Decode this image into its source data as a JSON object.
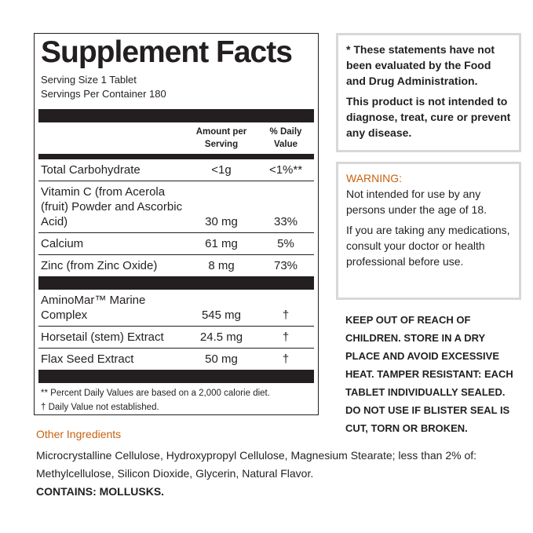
{
  "facts": {
    "title": "Supplement Facts",
    "serving_size": "Serving Size 1 Tablet",
    "servings_per_container": "Servings Per Container 180",
    "columns": [
      "Amount per Serving",
      "% Daily Value"
    ],
    "rows": [
      [
        "Total Carbohydrate",
        "<1g",
        "<1%**"
      ],
      [
        "Vitamin C (from Acerola (fruit) Powder and Ascorbic Acid)",
        "30 mg",
        "33%"
      ],
      [
        "Calcium",
        "61 mg",
        "5%"
      ],
      [
        "Zinc (from Zinc Oxide)",
        "8 mg",
        "73%"
      ]
    ],
    "other_rows": [
      [
        "AminoMar™ Marine Complex",
        "545 mg",
        "†"
      ],
      [
        "Horsetail (stem) Extract",
        "24.5 mg",
        "†"
      ],
      [
        "Flax Seed Extract",
        "50 mg",
        "†"
      ]
    ],
    "footnotes": [
      "** Percent Daily Values are based on a 2,000 calorie diet.",
      "† Daily Value not established."
    ]
  },
  "disclaimer": [
    "* These statements have not been evaluated by the Food and Drug Administration.",
    "This product is not intended to diagnose, treat, cure or prevent any disease."
  ],
  "warning": {
    "title": "WARNING:",
    "paragraphs": [
      "Not intended for use by any persons under the age of 18.",
      "If you are taking any medications, consult your doctor or health professional before use."
    ]
  },
  "storage": "KEEP OUT OF REACH OF CHILDREN. STORE IN A DRY PLACE AND AVOID EXCESSIVE HEAT. TAMPER RESISTANT: EACH TABLET INDIVIDUALLY SEALED. DO NOT USE IF BLISTER SEAL IS CUT, TORN OR BROKEN.",
  "other_ingredients": {
    "title": "Other Ingredients",
    "text": "Microcrystalline Cellulose, Hydroxypropyl Cellulose, Magnesium Stearate; less than 2% of: Methylcellulose, Silicon Dioxide, Glycerin, Natural Flavor.",
    "contains": "CONTAINS: MOLLUSKS."
  }
}
